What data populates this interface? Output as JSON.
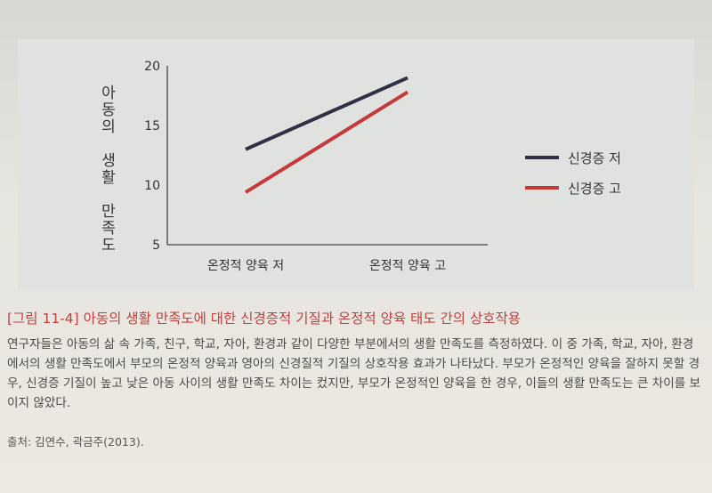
{
  "chart_data": {
    "type": "line",
    "categories": [
      "온정적 양육 저",
      "온정적 양육 고"
    ],
    "ylabel": "아동의 생활 만족도",
    "ylim": [
      5,
      20
    ],
    "yticks": [
      5,
      10,
      15,
      20
    ],
    "series": [
      {
        "name": "신경증 저",
        "color": "#2f2f45",
        "values": [
          13,
          19
        ]
      },
      {
        "name": "신경증 고",
        "color": "#c5393a",
        "values": [
          9.4,
          17.8
        ]
      }
    ],
    "legend_position": "right",
    "grid": false
  },
  "caption": {
    "tag": "[그림 11-4]",
    "text": " 아동의 생활 만족도에 대한 신경증적 기질과 온정적 양육 태도 간의 상호작용"
  },
  "body_text": "연구자들은 아동의 삶 속 가족, 친구, 학교, 자아, 환경과 같이 다양한 부분에서의 생활 만족도를 측정하였다. 이 중 가족, 학교, 자아, 환경에서의 생활 만족도에서 부모의 온정적 양육과 영아의 신경질적 기질의 상호작용 효과가 나타났다. 부모가 온정적인 양육을 잘하지 못할 경우, 신경증 기질이 높고 낮은 아동 사이의 생활 만족도 차이는 컸지만, 부모가 온정적인 양육을 한 경우, 이들의 생활 만족도는 큰 차이를 보이지 않았다.",
  "source": "출처: 김연수, 곽금주(2013)."
}
